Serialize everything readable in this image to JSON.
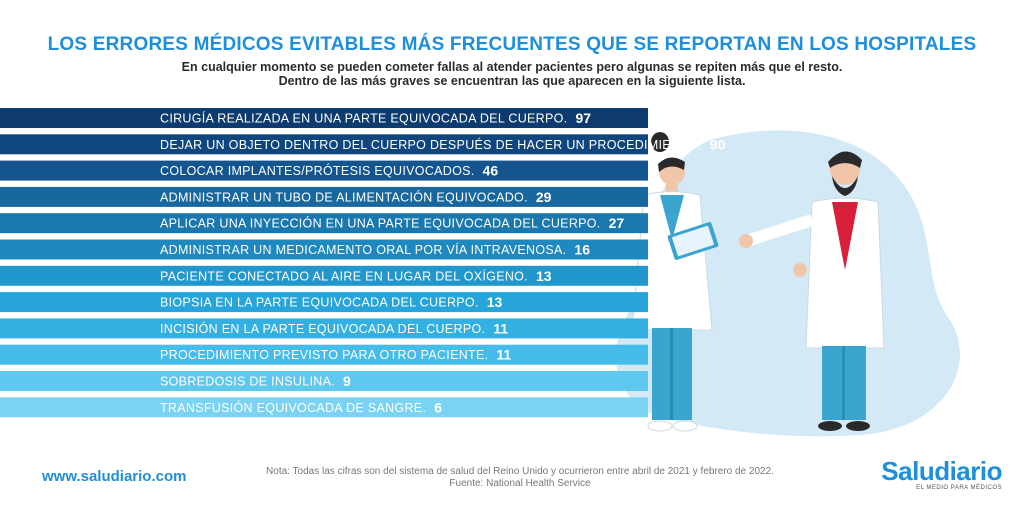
{
  "header": {
    "title": "LOS ERRORES MÉDICOS EVITABLES MÁS FRECUENTES QUE SE REPORTAN EN LOS HOSPITALES",
    "subtitle_line1": "En cualquier momento se pueden cometer fallas al atender pacientes pero algunas se repiten más que el resto.",
    "subtitle_line2": "Dentro de las más graves se encuentran las que aparecen en la siguiente lista."
  },
  "chart_data": {
    "type": "bar",
    "orientation": "horizontal",
    "categories": [
      "CIRUGÍA REALIZADA EN UNA PARTE EQUIVOCADA DEL CUERPO.",
      "DEJAR UN OBJETO DENTRO DEL CUERPO DESPUÉS DE HACER UN PROCEDIMIENTO.",
      "COLOCAR IMPLANTES/PRÓTESIS EQUIVOCADOS.",
      "ADMINISTRAR UN TUBO DE ALIMENTACIÓN EQUIVOCADO.",
      "APLICAR UNA INYECCIÓN EN UNA PARTE EQUIVOCADA DEL CUERPO.",
      "ADMINISTRAR UN MEDICAMENTO ORAL POR VÍA INTRAVENOSA.",
      "PACIENTE CONECTADO AL AIRE EN LUGAR DEL OXÍGENO.",
      "BIOPSIA EN LA PARTE EQUIVOCADA DEL CUERPO.",
      "INCISIÓN EN LA PARTE EQUIVOCADA DEL CUERPO.",
      "PROCEDIMIENTO PREVISTO PARA OTRO PACIENTE.",
      "SOBREDOSIS DE INSULINA.",
      "TRANSFUSIÓN EQUIVOCADA DE SANGRE."
    ],
    "values": [
      97,
      90,
      46,
      29,
      27,
      16,
      13,
      13,
      11,
      11,
      9,
      6
    ],
    "bar_colors": [
      "#0d3b6f",
      "#10467f",
      "#14558f",
      "#18679f",
      "#1b78ae",
      "#1e88bf",
      "#2197cd",
      "#27a4d9",
      "#33b0e2",
      "#45bce9",
      "#5ec8ee",
      "#7ad3f2"
    ],
    "title": "LOS ERRORES MÉDICOS EVITABLES MÁS FRECUENTES QUE SE REPORTAN EN LOS HOSPITALES",
    "xlabel": "",
    "ylabel": "",
    "grid": false
  },
  "footer": {
    "website": "www.saludiario.com",
    "note_line1": "Nota: Todas las cifras son del sistema de salud del Reino Unido y ocurrieron entre abril de 2021 y febrero de 2022.",
    "note_line2": "Fuente: National Health Service",
    "logo_name": "Saludiario",
    "logo_tagline": "EL MEDIO PARA MÉDICOS"
  },
  "colors": {
    "accent": "#1e8fd8",
    "blob": "#d3eaf6"
  }
}
